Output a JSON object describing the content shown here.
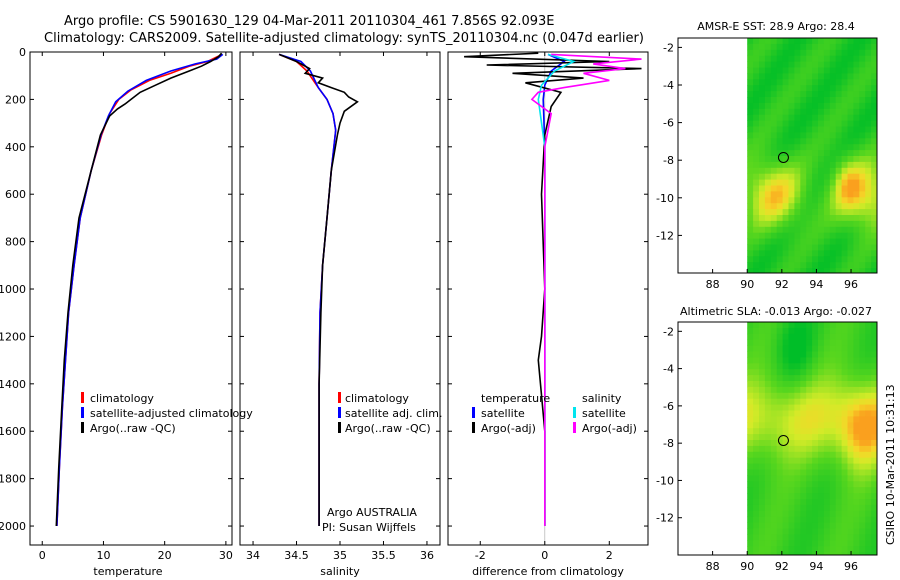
{
  "header": {
    "line1": "Argo profile: CS 5901630_129 04-Mar-2011 20110304_461 7.856S 92.093E",
    "line2": "Climatology: CARS2009. Satellite-adjusted climatology: synTS_20110304.nc (0.047d earlier)"
  },
  "colors": {
    "climatology": "#ff0000",
    "satellite": "#0000ff",
    "argo": "#000000",
    "salinity_satellite": "#00e5ee",
    "salinity_argo": "#ff00ff"
  },
  "chart_data": [
    {
      "type": "line",
      "xlabel": "temperature",
      "ylabel": "",
      "xlim": [
        -2,
        31
      ],
      "ylim": [
        2080,
        0
      ],
      "xticks": [
        "0",
        "10",
        "20",
        "30"
      ],
      "xtick_values": [
        0,
        10,
        20,
        30
      ],
      "yticks": [
        "0",
        "200",
        "400",
        "600",
        "800",
        "1000",
        "1200",
        "1400",
        "1600",
        "1800",
        "2000"
      ],
      "ytick_values": [
        0,
        200,
        400,
        600,
        800,
        1000,
        1200,
        1400,
        1600,
        1800,
        2000
      ],
      "legend": [
        "climatology",
        "satellite-adjusted climatology",
        "Argo(..raw -QC)"
      ],
      "series": [
        {
          "name": "climatology",
          "color": "#ff0000",
          "x": [
            29.4,
            27,
            24,
            21,
            17.5,
            14.5,
            12.5,
            11,
            9.7,
            8,
            6.2,
            5.2,
            4.3,
            3.8,
            3.3,
            2.8,
            2.4
          ],
          "y": [
            10,
            40,
            60,
            90,
            120,
            160,
            200,
            260,
            350,
            500,
            700,
            900,
            1100,
            1300,
            1500,
            1750,
            2000
          ]
        },
        {
          "name": "satellite",
          "color": "#0000ff",
          "x": [
            29.5,
            28.5,
            25,
            21,
            17,
            14,
            12,
            10.8,
            9.6,
            8,
            6.2,
            5.2,
            4.3,
            3.8,
            3.3,
            2.8,
            2.4
          ],
          "y": [
            10,
            30,
            50,
            80,
            120,
            165,
            210,
            270,
            350,
            500,
            700,
            900,
            1100,
            1300,
            1500,
            1750,
            2000
          ]
        },
        {
          "name": "Argo",
          "color": "#000000",
          "x": [
            29.3,
            28.8,
            27.5,
            26,
            24,
            21,
            18.5,
            16,
            14.5,
            13.5,
            12.3,
            11,
            9.5,
            8,
            6,
            5,
            4.2,
            3.6,
            3.2,
            2.7,
            2.3
          ],
          "y": [
            5,
            20,
            40,
            60,
            80,
            110,
            140,
            170,
            200,
            220,
            240,
            270,
            350,
            500,
            700,
            900,
            1100,
            1300,
            1500,
            1750,
            2000
          ]
        }
      ]
    },
    {
      "type": "line",
      "xlabel": "salinity",
      "ylabel": "",
      "xlim": [
        33.85,
        36.15
      ],
      "ylim": [
        2080,
        0
      ],
      "xticks": [
        "34",
        "34.5",
        "35",
        "35.5",
        "36"
      ],
      "xtick_values": [
        34,
        34.5,
        35,
        35.5,
        36
      ],
      "legend": [
        "climatology",
        "satellite adj. clim.",
        "Argo(..raw -QC)"
      ],
      "annotation": [
        "Argo AUSTRALIA",
        "PI: Susan Wijffels"
      ],
      "series": [
        {
          "name": "climatology",
          "color": "#ff0000",
          "x": [
            34.3,
            34.5,
            34.62,
            34.75,
            34.85,
            34.92,
            34.95,
            34.9,
            34.85,
            34.8,
            34.77,
            34.76,
            34.76,
            34.76
          ],
          "y": [
            10,
            40,
            80,
            150,
            200,
            260,
            330,
            500,
            700,
            900,
            1100,
            1400,
            1700,
            2000
          ]
        },
        {
          "name": "satellite",
          "color": "#0000ff",
          "x": [
            34.3,
            34.55,
            34.66,
            34.75,
            34.85,
            34.92,
            34.95,
            34.9,
            34.85,
            34.8,
            34.77,
            34.76,
            34.76,
            34.76
          ],
          "y": [
            10,
            40,
            80,
            150,
            200,
            260,
            330,
            500,
            700,
            900,
            1100,
            1400,
            1700,
            2000
          ]
        },
        {
          "name": "Argo",
          "color": "#000000",
          "x": [
            34.3,
            34.5,
            34.65,
            34.6,
            34.8,
            34.75,
            34.9,
            35.05,
            35.1,
            35.2,
            35.05,
            35.0,
            34.97,
            34.9,
            34.85,
            34.8,
            34.78,
            34.76,
            34.76,
            34.76
          ],
          "y": [
            10,
            40,
            70,
            90,
            110,
            130,
            150,
            170,
            190,
            210,
            250,
            300,
            350,
            500,
            700,
            900,
            1100,
            1400,
            1700,
            2000
          ]
        }
      ]
    },
    {
      "type": "line",
      "xlabel": "difference from climatology",
      "ylabel": "",
      "xlim": [
        -3,
        3.2
      ],
      "ylim": [
        2080,
        0
      ],
      "xticks": [
        "-2",
        "0",
        "2"
      ],
      "xtick_values": [
        -2,
        0,
        2
      ],
      "legend_temperature": [
        "temperature",
        "satellite",
        "Argo(-adj)"
      ],
      "legend_salinity": [
        "salinity",
        "satellite",
        "Argo(-adj)"
      ],
      "series": [
        {
          "name": "temperature satellite",
          "color": "#0000ff",
          "x": [
            0.1,
            0.6,
            0.2,
            0.0,
            -0.05,
            0.0,
            0.0,
            0.0,
            0.0
          ],
          "y": [
            10,
            40,
            80,
            140,
            200,
            400,
            800,
            1400,
            2000
          ]
        },
        {
          "name": "temperature Argo(-adj)",
          "color": "#000000",
          "x": [
            -0.2,
            -2.5,
            2.0,
            -1.8,
            3.0,
            -1.0,
            1.2,
            -0.6,
            0.5,
            0.2,
            0.0,
            -0.1,
            0.0,
            -0.1,
            -0.2,
            0.0,
            0.0
          ],
          "y": [
            5,
            20,
            40,
            55,
            70,
            90,
            110,
            130,
            170,
            230,
            350,
            600,
            1000,
            1200,
            1300,
            1600,
            2000
          ]
        },
        {
          "name": "salinity satellite",
          "color": "#00e5ee",
          "x": [
            0.1,
            0.9,
            0.3,
            -0.1,
            -0.2,
            0.0,
            0.0,
            0.0
          ],
          "y": [
            10,
            40,
            80,
            140,
            200,
            400,
            1000,
            2000
          ]
        },
        {
          "name": "salinity Argo(-adj)",
          "color": "#ff00ff",
          "x": [
            0.2,
            3.0,
            1.5,
            2.5,
            1.2,
            2.0,
            0.6,
            -0.2,
            -0.4,
            0.2,
            0.0,
            0.0,
            0.0
          ],
          "y": [
            10,
            30,
            50,
            70,
            90,
            120,
            150,
            170,
            200,
            260,
            400,
            1100,
            2000
          ]
        }
      ]
    },
    {
      "type": "heatmap",
      "title": "AMSR-E SST: 28.9 Argo: 28.4",
      "xlim": [
        86,
        97.5
      ],
      "ylim": [
        -14,
        -1.5
      ],
      "xticks": [
        "88",
        "90",
        "92",
        "94",
        "96"
      ],
      "xtick_values": [
        88,
        90,
        92,
        94,
        96
      ],
      "yticks": [
        "-2",
        "-4",
        "-6",
        "-8",
        "-10",
        "-12"
      ],
      "ytick_values": [
        -2,
        -4,
        -6,
        -8,
        -10,
        -12
      ],
      "marker": {
        "lon": 92.093,
        "lat": -7.856
      }
    },
    {
      "type": "heatmap",
      "title": "Altimetric SLA: -0.013 Argo: -0.027",
      "xlim": [
        86,
        97.5
      ],
      "ylim": [
        -14,
        -1.5
      ],
      "xticks": [
        "88",
        "90",
        "92",
        "94",
        "96"
      ],
      "xtick_values": [
        88,
        90,
        92,
        94,
        96
      ],
      "yticks": [
        "-2",
        "-4",
        "-6",
        "-8",
        "-10",
        "-12"
      ],
      "ytick_values": [
        -2,
        -4,
        -6,
        -8,
        -10,
        -12
      ],
      "marker": {
        "lon": 92.093,
        "lat": -7.856
      }
    }
  ],
  "footer": {
    "side_label": "CSIRO 10-Mar-2011 10:31:13"
  }
}
